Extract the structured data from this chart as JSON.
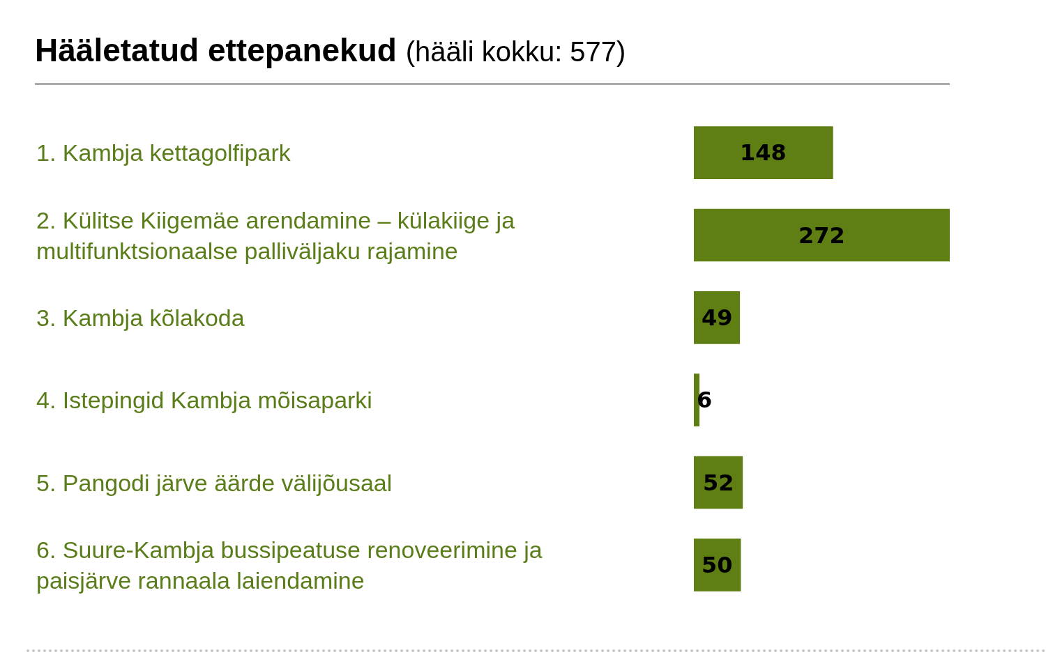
{
  "chart_data": {
    "type": "bar",
    "orientation": "horizontal",
    "title": "Hääletatud ettepanekud",
    "subtitle": "(hääli kokku: 577)",
    "categories": [
      "1. Kambja kettagolfipark",
      "2. Külitse Kiigemäe arendamine – külakiige ja multifunktsionaalse palliväljaku rajamine",
      "3. Kambja kõlakoda",
      "4. Istepingid Kambja mõisaparki",
      "5. Pangodi järve äärde välijõusaal",
      "6. Suure-Kambja bussipeatuse renoveerimine ja paisjärve rannaala laiendamine"
    ],
    "values": [
      148,
      272,
      49,
      6,
      52,
      50
    ],
    "color": "#5f7f14",
    "data_labels": true
  }
}
